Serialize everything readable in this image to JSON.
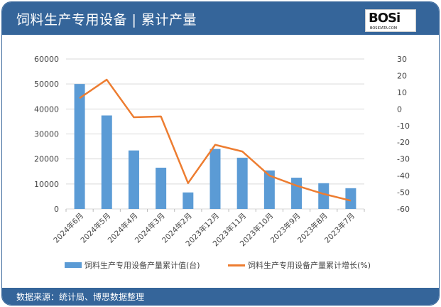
{
  "header": {
    "title": "饲料生产专用设备 | 累计产量",
    "logo_text": "BOSi",
    "logo_sub": "BOSIDATA.COM"
  },
  "footer": {
    "source": "数据来源：统计局、博思数据整理"
  },
  "legend": {
    "bar_label": "饲料生产专用设备产量累计值(台)",
    "line_label": "饲料生产专用设备产量累计增长(%)"
  },
  "colors": {
    "header_bg": "#35659a",
    "bar": "#5b9bd5",
    "line": "#ed7d31",
    "grid": "#d9d9d9"
  },
  "chart_data": {
    "type": "bar",
    "title": "饲料生产专用设备 | 累计产量",
    "categories": [
      "2024年6月",
      "2024年5月",
      "2024年4月",
      "2024年3月",
      "2024年2月",
      "2023年12月",
      "2023年11月",
      "2023年10月",
      "2023年9月",
      "2023年8月",
      "2023年7月"
    ],
    "series": [
      {
        "name": "饲料生产专用设备产量累计值(台)",
        "type": "bar",
        "axis": "left",
        "values": [
          50000,
          37400,
          23400,
          16500,
          6600,
          24000,
          20500,
          15400,
          12500,
          10300,
          8300
        ]
      },
      {
        "name": "饲料生产专用设备产量累计增长(%)",
        "type": "line",
        "axis": "right",
        "values": [
          6.5,
          17.6,
          -5.0,
          -4.5,
          -44.5,
          -21.5,
          -25.5,
          -40.0,
          -46.0,
          -51.0,
          -55.0
        ]
      }
    ],
    "left_axis": {
      "ticks": [
        "0",
        "10000",
        "20000",
        "30000",
        "40000",
        "50000",
        "60000"
      ],
      "ylim": [
        0,
        60000
      ]
    },
    "right_axis": {
      "ticks": [
        "30",
        "20",
        "10",
        "0",
        "-10",
        "-20",
        "-30",
        "-40",
        "-50",
        "-60"
      ],
      "ylim": [
        -60,
        30
      ]
    },
    "xlabel": "",
    "ylabel": "",
    "grid": true,
    "legend_position": "bottom"
  }
}
